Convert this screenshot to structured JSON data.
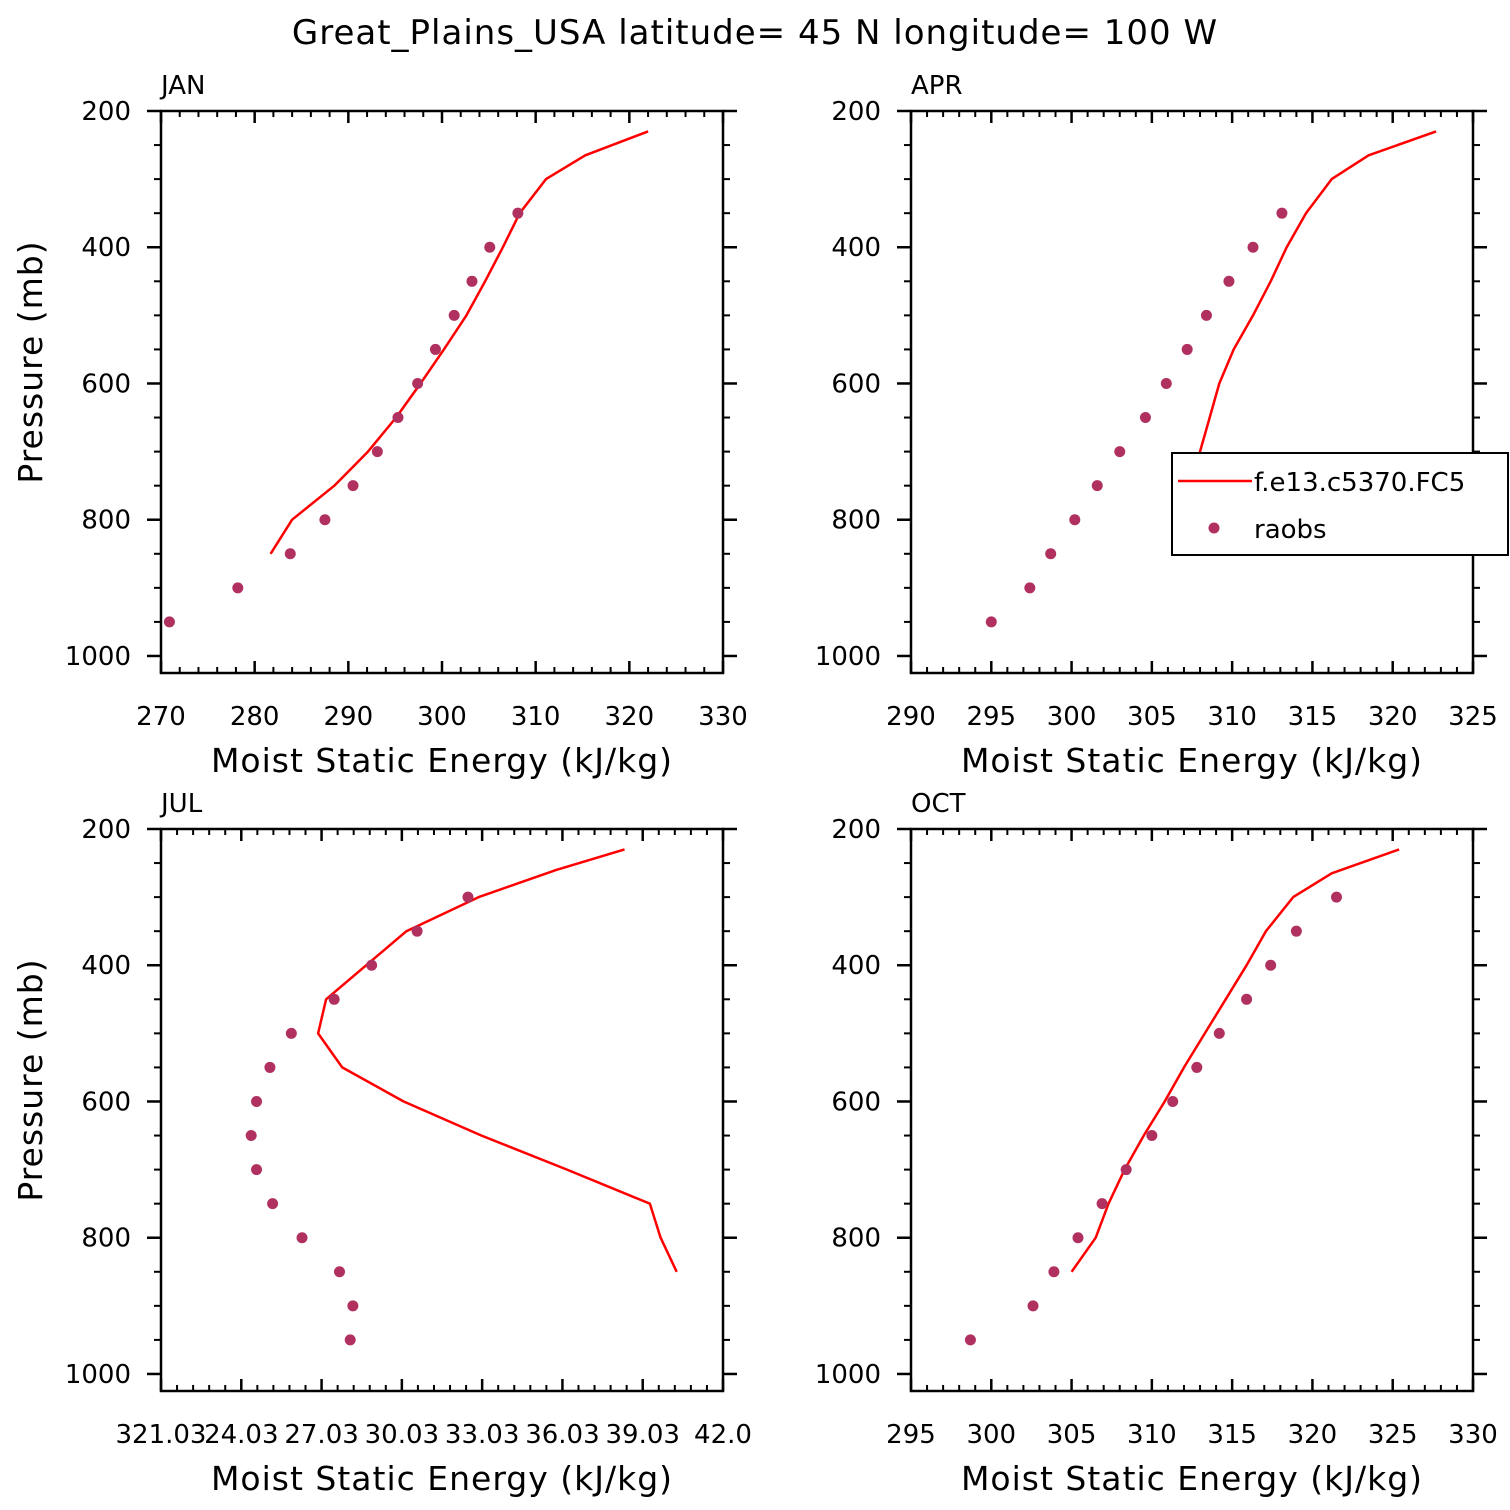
{
  "figure": {
    "title": "Great_Plains_USA  latitude= 45 N longitude= 100 W"
  },
  "legend": {
    "items": [
      {
        "label": "f.e13.c5370.FC5",
        "kind": "line",
        "color": "#ff0000"
      },
      {
        "label": "raobs",
        "kind": "marker",
        "color": "#b03060"
      }
    ]
  },
  "colors": {
    "model": "#ff0000",
    "obs": "#b03060"
  },
  "chart_data": [
    {
      "type": "line",
      "panel": "JAN",
      "xlabel": "Moist Static Energy (kJ/kg)",
      "ylabel": "Pressure (mb)",
      "xlim": [
        270,
        330
      ],
      "ylim": [
        1025,
        200
      ],
      "xticks": [
        "270",
        "280",
        "290",
        "300",
        "310",
        "320",
        "330"
      ],
      "xtick_values": [
        270,
        280,
        290,
        300,
        310,
        320,
        330
      ],
      "yticks": [
        "200",
        "400",
        "600",
        "800",
        "1000"
      ],
      "ytick_values": [
        200,
        400,
        600,
        800,
        1000
      ],
      "series": [
        {
          "name": "f.e13.c5370.FC5",
          "kind": "line",
          "x": [
            322.0,
            315.3,
            311.1,
            308.3,
            306.5,
            304.6,
            302.6,
            300.2,
            297.7,
            295.1,
            292.1,
            288.5,
            284.0,
            281.7
          ],
          "y": [
            230,
            265,
            300,
            350,
            400,
            450,
            500,
            550,
            600,
            650,
            700,
            750,
            800,
            850
          ]
        },
        {
          "name": "raobs",
          "kind": "scatter",
          "x": [
            308.1,
            305.1,
            303.2,
            301.3,
            299.3,
            297.4,
            295.3,
            293.1,
            290.5,
            287.5,
            283.8,
            278.2,
            270.9
          ],
          "y": [
            350,
            400,
            450,
            500,
            550,
            600,
            650,
            700,
            750,
            800,
            850,
            900,
            950
          ]
        }
      ]
    },
    {
      "type": "line",
      "panel": "APR",
      "xlabel": "Moist Static Energy (kJ/kg)",
      "ylabel": "",
      "xlim": [
        290,
        325
      ],
      "ylim": [
        1025,
        200
      ],
      "xticks": [
        "290",
        "295",
        "300",
        "305",
        "310",
        "315",
        "320",
        "325"
      ],
      "xtick_values": [
        290,
        295,
        300,
        305,
        310,
        315,
        320,
        325
      ],
      "yticks": [
        "200",
        "400",
        "600",
        "800",
        "1000"
      ],
      "ytick_values": [
        200,
        400,
        600,
        800,
        1000
      ],
      "series": [
        {
          "name": "f.e13.c5370.FC5",
          "kind": "line",
          "x": [
            322.7,
            318.5,
            316.2,
            314.6,
            313.4,
            312.4,
            311.3,
            310.1,
            309.2,
            308.6,
            308.0,
            307.4,
            306.8,
            306.4
          ],
          "y": [
            230,
            265,
            300,
            350,
            400,
            450,
            500,
            550,
            600,
            650,
            700,
            750,
            800,
            850
          ]
        },
        {
          "name": "raobs",
          "kind": "scatter",
          "x": [
            313.1,
            311.3,
            309.8,
            308.4,
            307.2,
            305.9,
            304.6,
            303.0,
            301.6,
            300.2,
            298.7,
            297.4,
            295.0
          ],
          "y": [
            350,
            400,
            450,
            500,
            550,
            600,
            650,
            700,
            750,
            800,
            850,
            900,
            950
          ]
        }
      ]
    },
    {
      "type": "line",
      "panel": "JUL",
      "xlabel": "Moist Static Energy (kJ/kg)",
      "ylabel": "Pressure (mb)",
      "xlim": [
        321.03,
        342.03
      ],
      "ylim": [
        1025,
        200
      ],
      "xticks": [
        "321.03",
        "24.03",
        "27.03",
        "30.03",
        "33.03",
        "36.03",
        "39.03",
        "42.0"
      ],
      "xtick_values": [
        321.03,
        324.03,
        327.03,
        330.03,
        333.03,
        336.03,
        339.03,
        342.03
      ],
      "yticks": [
        "200",
        "400",
        "600",
        "800",
        "1000"
      ],
      "ytick_values": [
        200,
        400,
        600,
        800,
        1000
      ],
      "series": [
        {
          "name": "f.e13.c5370.FC5",
          "kind": "line",
          "x": [
            338.35,
            335.8,
            332.9,
            330.2,
            328.7,
            327.2,
            326.9,
            327.8,
            330.1,
            333.0,
            336.2,
            339.3,
            339.7,
            340.3
          ],
          "y": [
            230,
            260,
            300,
            350,
            400,
            450,
            500,
            550,
            600,
            650,
            700,
            750,
            800,
            850
          ]
        },
        {
          "name": "raobs",
          "kind": "scatter",
          "x": [
            332.5,
            330.6,
            328.9,
            327.5,
            325.9,
            325.1,
            324.6,
            324.4,
            324.6,
            325.2,
            326.3,
            327.7,
            328.2,
            328.1
          ],
          "y": [
            300,
            350,
            400,
            450,
            500,
            550,
            600,
            650,
            700,
            750,
            800,
            850,
            900,
            950
          ]
        }
      ]
    },
    {
      "type": "line",
      "panel": "OCT",
      "xlabel": "Moist Static Energy (kJ/kg)",
      "ylabel": "",
      "xlim": [
        295,
        330
      ],
      "ylim": [
        1025,
        200
      ],
      "xticks": [
        "295",
        "300",
        "305",
        "310",
        "315",
        "320",
        "325",
        "330"
      ],
      "xtick_values": [
        295,
        300,
        305,
        310,
        315,
        320,
        325,
        330
      ],
      "yticks": [
        "200",
        "400",
        "600",
        "800",
        "1000"
      ],
      "ytick_values": [
        200,
        400,
        600,
        800,
        1000
      ],
      "series": [
        {
          "name": "f.e13.c5370.FC5",
          "kind": "line",
          "x": [
            325.4,
            321.2,
            318.8,
            317.1,
            315.9,
            314.6,
            313.3,
            312.0,
            310.8,
            309.5,
            308.3,
            307.3,
            306.5,
            305.0
          ],
          "y": [
            230,
            265,
            300,
            350,
            400,
            450,
            500,
            550,
            600,
            650,
            700,
            750,
            800,
            850
          ]
        },
        {
          "name": "raobs",
          "kind": "scatter",
          "x": [
            321.5,
            319.0,
            317.4,
            315.9,
            314.2,
            312.8,
            311.3,
            310.0,
            308.4,
            306.9,
            305.4,
            303.9,
            302.6,
            298.7
          ],
          "y": [
            300,
            350,
            400,
            450,
            500,
            550,
            600,
            650,
            700,
            750,
            800,
            850,
            900,
            950
          ]
        }
      ]
    }
  ]
}
